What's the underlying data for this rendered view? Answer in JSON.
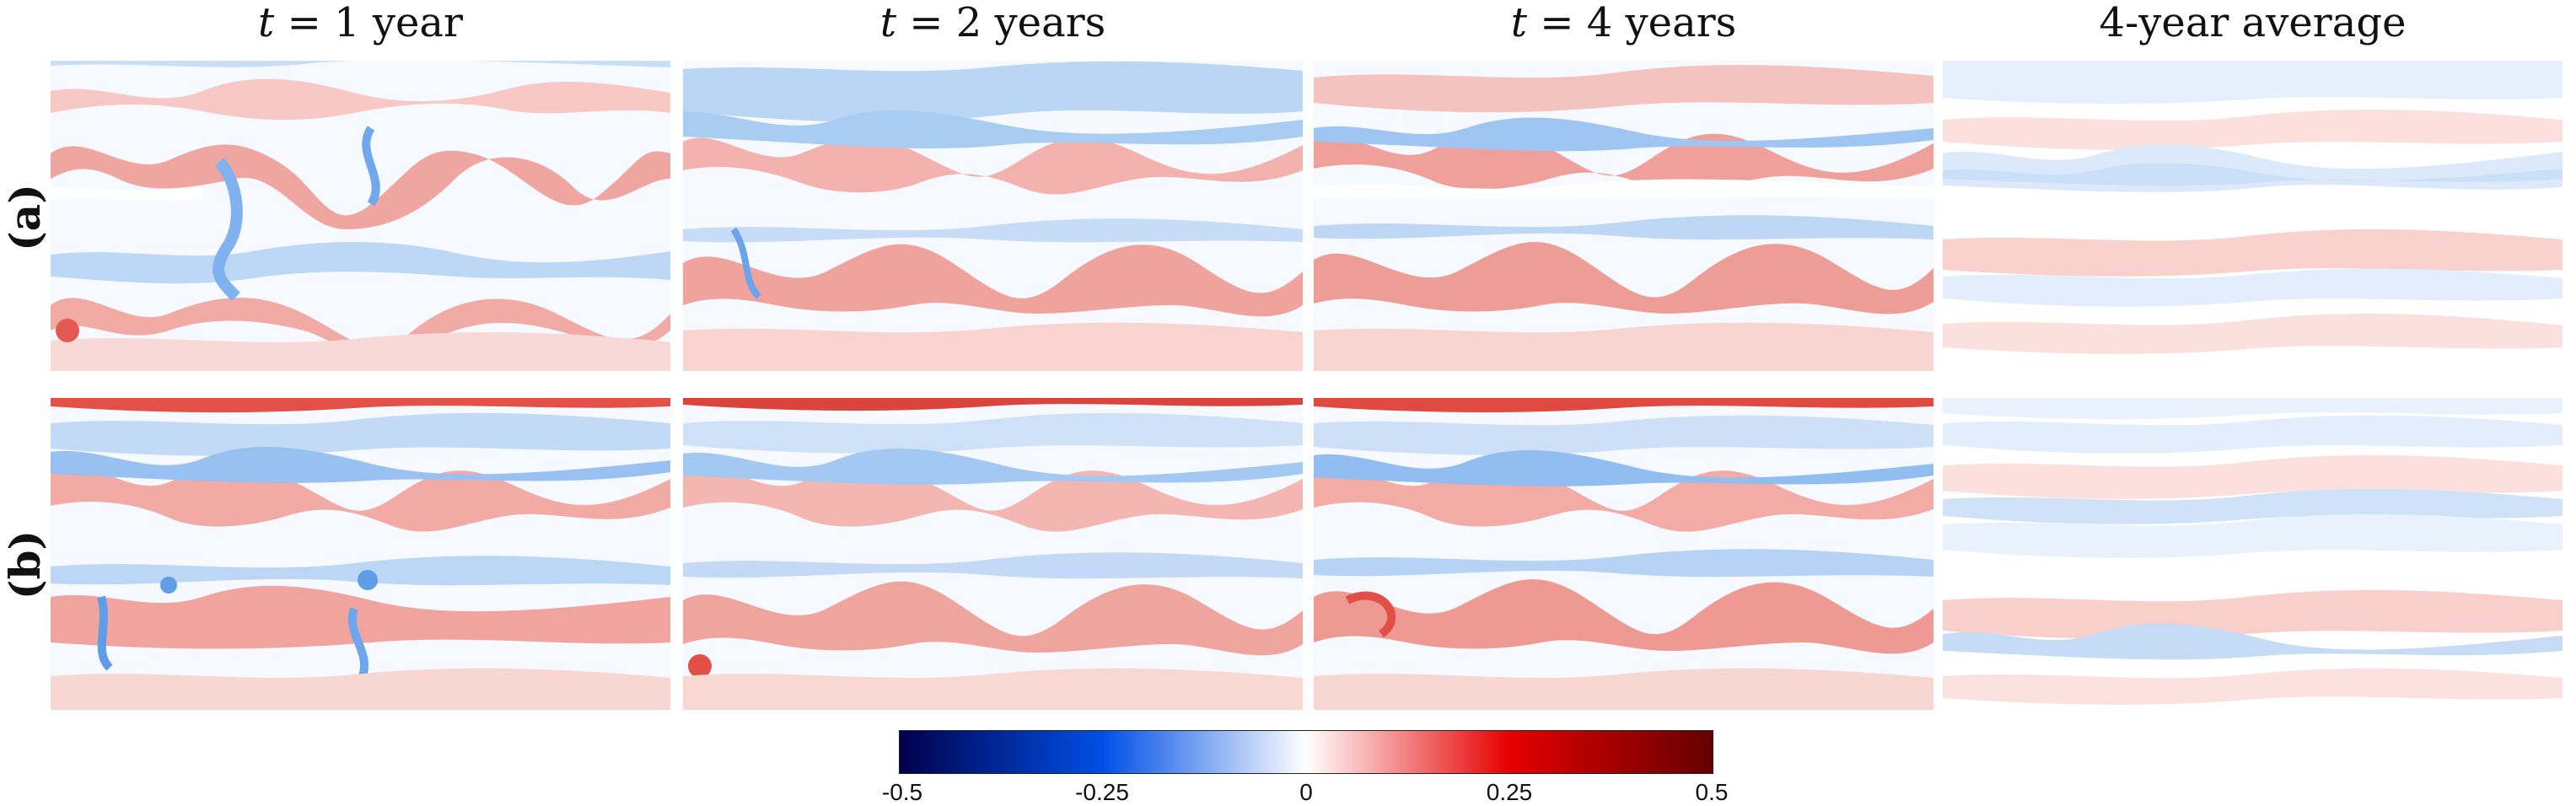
{
  "columns": [
    {
      "prefix": "t",
      "label": " = 1 year"
    },
    {
      "prefix": "t",
      "label": " = 2 years"
    },
    {
      "prefix": "t",
      "label": " = 4 years"
    },
    {
      "prefix": "",
      "label": "4-year average"
    }
  ],
  "rows": [
    {
      "label": "(a)"
    },
    {
      "label": "(b)"
    }
  ],
  "colorbar": {
    "ticks": [
      "-0.5",
      "-0.25",
      "0",
      "0.25",
      "0.5"
    ],
    "colors": [
      "#00004c",
      "#0050e6",
      "#ffffff",
      "#e60000",
      "#640000"
    ]
  }
}
